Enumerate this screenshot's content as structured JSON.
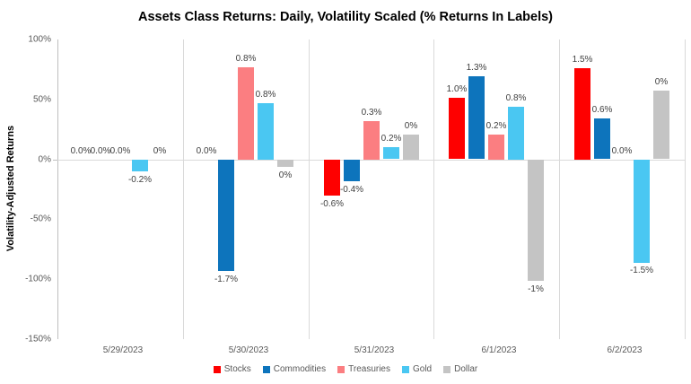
{
  "chart_data": {
    "type": "bar",
    "title": "Assets Class Returns: Daily, Volatility Scaled (% Returns In Labels)",
    "ylabel": "Volatility-Adjusted Returns",
    "xlabel": "",
    "categories": [
      "5/29/2023",
      "5/30/2023",
      "5/31/2023",
      "6/1/2023",
      "6/2/2023"
    ],
    "series": [
      {
        "name": "Stocks",
        "color": "#fe0000",
        "plotted_values_pct": [
          0,
          0,
          -30,
          51,
          76
        ],
        "labels": [
          "0.0%",
          "0.0%",
          "-0.6%",
          "1.0%",
          "1.5%"
        ]
      },
      {
        "name": "Commodities",
        "color": "#0d74bc",
        "plotted_values_pct": [
          0,
          -93,
          -18,
          69,
          34
        ],
        "labels": [
          "0.0%",
          "-1.7%",
          "-0.4%",
          "1.3%",
          "0.6%"
        ]
      },
      {
        "name": "Treasuries",
        "color": "#fb7e81",
        "plotted_values_pct": [
          0,
          77,
          32,
          21,
          0
        ],
        "labels": [
          "0.0%",
          "0.8%",
          "0.3%",
          "0.2%",
          "0.0%"
        ]
      },
      {
        "name": "Gold",
        "color": "#4ac7f2",
        "plotted_values_pct": [
          -10,
          47,
          10,
          44,
          -86
        ],
        "labels": [
          "-0.2%",
          "0.8%",
          "0.2%",
          "0.8%",
          "-1.5%"
        ]
      },
      {
        "name": "Dollar",
        "color": "#c4c4c4",
        "plotted_values_pct": [
          0,
          -6,
          21,
          -101,
          57
        ],
        "labels": [
          "0%",
          "0%",
          "0%",
          "-1%",
          "0%"
        ]
      }
    ],
    "ylim": [
      -150,
      100
    ],
    "ytick_labels": [
      "100%",
      "50%",
      "0%",
      "-50%",
      "-100%",
      "-150%"
    ],
    "ytick_values": [
      100,
      50,
      0,
      -50,
      -100,
      -150
    ],
    "grid": "vertical-group-separators-and-zero-line-only",
    "legend_position": "bottom"
  }
}
